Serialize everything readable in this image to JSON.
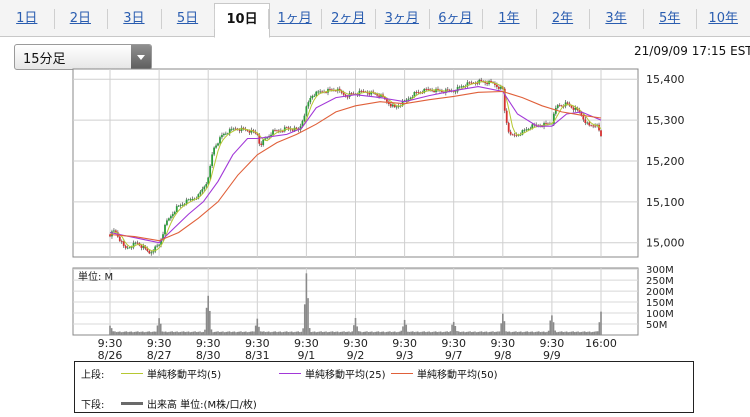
{
  "tabs": [
    "1日",
    "2日",
    "3日",
    "5日",
    "10日",
    "1ヶ月",
    "2ヶ月",
    "3ヶ月",
    "6ヶ月",
    "1年",
    "2年",
    "3年",
    "5年",
    "10年"
  ],
  "active_tab": "10日",
  "period_select": {
    "value": "15分足"
  },
  "timestamp": "21/09/09 17:15 EST",
  "colors": {
    "ma5": "#b6c832",
    "ma25": "#a238d8",
    "ma50": "#e0603a",
    "candle_up": "#2a9a3a",
    "candle_down": "#d43030",
    "volume": "#8a8a8a"
  },
  "legend": {
    "upper_label": "上段:",
    "lower_label": "下段:",
    "ma5": "単純移動平均(5)",
    "ma25": "単純移動平均(25)",
    "ma50": "単純移動平均(50)",
    "volume": "出来高 単位:(M株/口/枚)"
  },
  "chart_data": {
    "type": "line",
    "title": "",
    "price_axis": {
      "ticks": [
        "15,400",
        "15,300",
        "15,200",
        "15,100",
        "15,000"
      ],
      "ylim": [
        14965,
        15425
      ],
      "grid": true
    },
    "volume_axis": {
      "unit_label": "単位: M",
      "ticks": [
        "300M",
        "250M",
        "200M",
        "150M",
        "100M",
        "50M"
      ],
      "ylim": [
        0,
        305
      ]
    },
    "x_ticks": [
      {
        "time": "9:30",
        "date": "8/26"
      },
      {
        "time": "9:30",
        "date": "8/27"
      },
      {
        "time": "9:30",
        "date": "8/30"
      },
      {
        "time": "9:30",
        "date": "8/31"
      },
      {
        "time": "9:30",
        "date": "9/1"
      },
      {
        "time": "9:30",
        "date": "9/2"
      },
      {
        "time": "9:30",
        "date": "9/3"
      },
      {
        "time": "9:30",
        "date": "9/7"
      },
      {
        "time": "9:30",
        "date": "9/8"
      },
      {
        "time": "9:30",
        "date": "9/9"
      },
      {
        "time": "16:00",
        "date": ""
      }
    ],
    "price_path": [
      [
        0,
        15020
      ],
      [
        0.1,
        15030
      ],
      [
        0.3,
        14985
      ],
      [
        0.55,
        15000
      ],
      [
        0.8,
        14975
      ],
      [
        1.0,
        14995
      ],
      [
        1.15,
        15050
      ],
      [
        1.35,
        15085
      ],
      [
        1.55,
        15100
      ],
      [
        1.8,
        15115
      ],
      [
        2.0,
        15155
      ],
      [
        2.1,
        15230
      ],
      [
        2.3,
        15265
      ],
      [
        2.55,
        15280
      ],
      [
        2.8,
        15275
      ],
      [
        3.0,
        15265
      ],
      [
        3.05,
        15240
      ],
      [
        3.3,
        15270
      ],
      [
        3.6,
        15280
      ],
      [
        3.85,
        15275
      ],
      [
        4.0,
        15330
      ],
      [
        4.1,
        15360
      ],
      [
        4.3,
        15370
      ],
      [
        4.6,
        15375
      ],
      [
        4.8,
        15360
      ],
      [
        5.0,
        15365
      ],
      [
        5.2,
        15370
      ],
      [
        5.5,
        15360
      ],
      [
        5.8,
        15330
      ],
      [
        6.0,
        15345
      ],
      [
        6.2,
        15365
      ],
      [
        6.5,
        15375
      ],
      [
        6.8,
        15370
      ],
      [
        7.0,
        15372
      ],
      [
        7.2,
        15385
      ],
      [
        7.5,
        15395
      ],
      [
        7.8,
        15390
      ],
      [
        8.0,
        15375
      ],
      [
        8.05,
        15310
      ],
      [
        8.15,
        15260
      ],
      [
        8.3,
        15265
      ],
      [
        8.6,
        15285
      ],
      [
        8.9,
        15290
      ],
      [
        9.0,
        15295
      ],
      [
        9.1,
        15335
      ],
      [
        9.3,
        15340
      ],
      [
        9.55,
        15320
      ],
      [
        9.75,
        15285
      ],
      [
        9.9,
        15290
      ],
      [
        10.0,
        15260
      ]
    ],
    "series": [
      {
        "name": "単純移動平均(25)",
        "points": [
          [
            0,
            15025
          ],
          [
            0.4,
            15015
          ],
          [
            0.8,
            15005
          ],
          [
            1.0,
            15000
          ],
          [
            1.3,
            15035
          ],
          [
            1.6,
            15070
          ],
          [
            1.9,
            15100
          ],
          [
            2.2,
            15150
          ],
          [
            2.5,
            15215
          ],
          [
            2.8,
            15255
          ],
          [
            3.0,
            15255
          ],
          [
            3.3,
            15260
          ],
          [
            3.6,
            15265
          ],
          [
            3.9,
            15280
          ],
          [
            4.2,
            15330
          ],
          [
            4.6,
            15355
          ],
          [
            5.0,
            15362
          ],
          [
            5.5,
            15355
          ],
          [
            6.0,
            15345
          ],
          [
            6.5,
            15360
          ],
          [
            7.0,
            15372
          ],
          [
            7.5,
            15382
          ],
          [
            8.0,
            15370
          ],
          [
            8.3,
            15315
          ],
          [
            8.7,
            15285
          ],
          [
            9.0,
            15285
          ],
          [
            9.3,
            15315
          ],
          [
            9.6,
            15320
          ],
          [
            10.0,
            15300
          ]
        ]
      },
      {
        "name": "単純移動平均(50)",
        "points": [
          [
            0,
            15020
          ],
          [
            0.5,
            15015
          ],
          [
            1.0,
            15005
          ],
          [
            1.4,
            15025
          ],
          [
            1.8,
            15060
          ],
          [
            2.2,
            15100
          ],
          [
            2.6,
            15165
          ],
          [
            3.0,
            15215
          ],
          [
            3.4,
            15245
          ],
          [
            3.8,
            15265
          ],
          [
            4.2,
            15290
          ],
          [
            4.6,
            15320
          ],
          [
            5.0,
            15335
          ],
          [
            5.5,
            15345
          ],
          [
            6.0,
            15340
          ],
          [
            6.5,
            15350
          ],
          [
            7.0,
            15358
          ],
          [
            7.5,
            15368
          ],
          [
            8.0,
            15370
          ],
          [
            8.4,
            15355
          ],
          [
            8.8,
            15335
          ],
          [
            9.2,
            15320
          ],
          [
            9.6,
            15312
          ],
          [
            10.0,
            15305
          ]
        ]
      }
    ],
    "volume_spikes": [
      {
        "x": 0.0,
        "value": 50
      },
      {
        "x": 1.0,
        "value": 75
      },
      {
        "x": 2.0,
        "value": 200
      },
      {
        "x": 3.0,
        "value": 70
      },
      {
        "x": 4.0,
        "value": 300
      },
      {
        "x": 5.0,
        "value": 70
      },
      {
        "x": 6.0,
        "value": 70
      },
      {
        "x": 7.0,
        "value": 70
      },
      {
        "x": 8.0,
        "value": 95
      },
      {
        "x": 9.0,
        "value": 100
      },
      {
        "x": 10.0,
        "value": 100
      }
    ],
    "volume_base": 15
  }
}
